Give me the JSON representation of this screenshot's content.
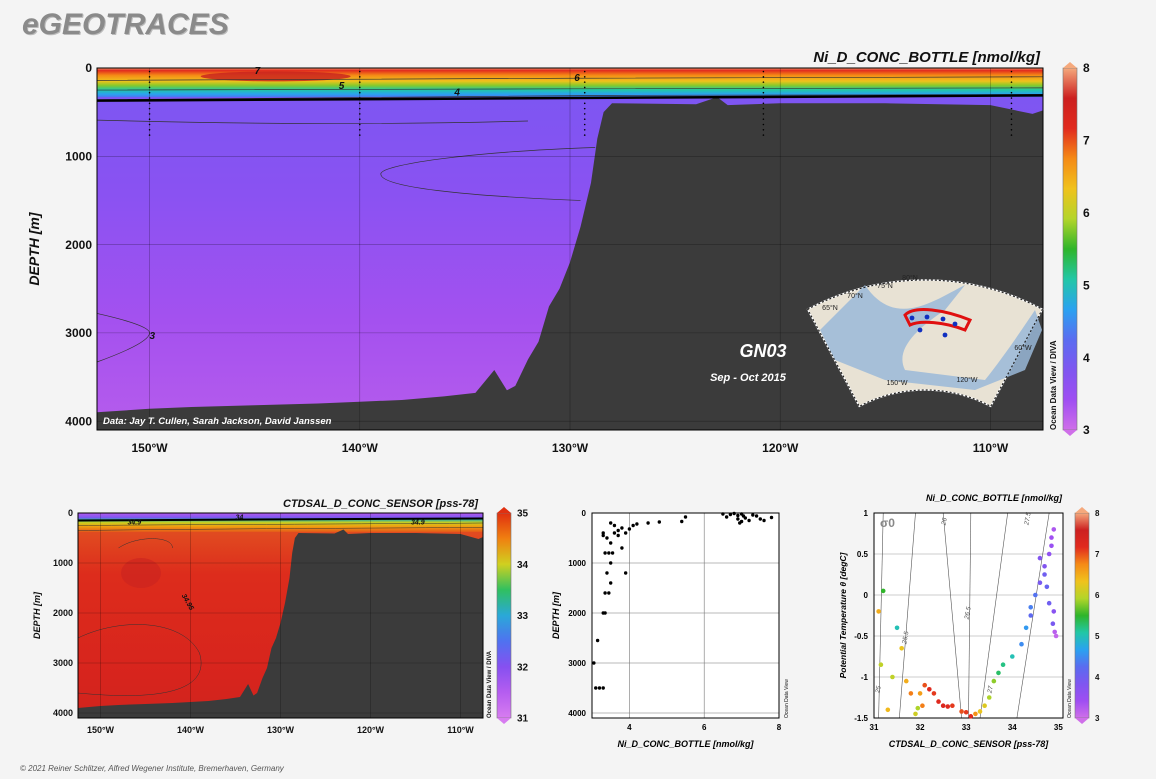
{
  "brand": "eGEOTRACES",
  "footer": "© 2021 Reiner Schlitzer, Alfred Wegener Institute, Bremerhaven, Germany",
  "colors": {
    "land": "#3b3b3b",
    "background": "#f4f4f4",
    "scale_ni": [
      "#cf6fe9",
      "#9f4ef2",
      "#7f56f0",
      "#5a6cf0",
      "#2aa2f0",
      "#22c7a6",
      "#2fb52a",
      "#b3d52a",
      "#f0c21c",
      "#f58a16",
      "#e12a1e",
      "#cc2020",
      "#f5a97d"
    ],
    "scale_sal": [
      "#d77cf0",
      "#b55df0",
      "#8650f0",
      "#4f72f0",
      "#2aa8d8",
      "#30c060",
      "#d0d020",
      "#f08010",
      "#e03010"
    ]
  },
  "chart_data": [
    {
      "id": "main-section",
      "type": "heatmap",
      "title": "Ni_D_CONC_BOTTLE [nmol/kg]",
      "ylabel": "DEPTH [m]",
      "xlabel": "",
      "x_ticks": [
        "150°W",
        "140°W",
        "130°W",
        "120°W",
        "110°W"
      ],
      "x_tick_values": [
        -150,
        -140,
        -130,
        -120,
        -110
      ],
      "y_ticks": [
        "0",
        "1000",
        "2000",
        "3000",
        "4000"
      ],
      "y_tick_values": [
        0,
        1000,
        2000,
        3000,
        4000
      ],
      "xlim": [
        -152.5,
        -107.5
      ],
      "ylim": [
        0,
        4100
      ],
      "colorbar": {
        "ticks": [
          "8",
          "7",
          "6",
          "5",
          "4",
          "3"
        ],
        "range": [
          3,
          8
        ]
      },
      "contour_labels": [
        "7",
        "6",
        "5",
        "4",
        "3"
      ],
      "annotations": {
        "section": "GN03",
        "period": "Sep - Oct 2015",
        "credit": "Data: Jay T. Cullen, Sarah Jackson, David Janssen"
      },
      "side_label": "Ocean Data View / DIVA",
      "inset_map": {
        "labels": [
          "80°N",
          "75°N",
          "70°N",
          "65°N",
          "150°W",
          "120°W",
          "60°W"
        ]
      }
    },
    {
      "id": "salinity-section",
      "type": "heatmap",
      "title": "CTDSAL_D_CONC_SENSOR [pss-78]",
      "ylabel": "DEPTH [m]",
      "x_ticks": [
        "150°W",
        "140°W",
        "130°W",
        "120°W",
        "110°W"
      ],
      "x_tick_values": [
        -150,
        -140,
        -130,
        -120,
        -110
      ],
      "y_ticks": [
        "0",
        "1000",
        "2000",
        "3000",
        "4000"
      ],
      "y_tick_values": [
        0,
        1000,
        2000,
        3000,
        4000
      ],
      "xlim": [
        -152.5,
        -107.5
      ],
      "ylim": [
        0,
        4100
      ],
      "colorbar": {
        "ticks": [
          "35",
          "34",
          "33",
          "32",
          "31"
        ],
        "range": [
          31,
          35
        ]
      },
      "contour_labels": [
        "34.9",
        "34",
        "34.9",
        "34.95"
      ],
      "side_label": "Ocean Data View / DIVA"
    },
    {
      "id": "profile-scatter",
      "type": "scatter",
      "title": "",
      "xlabel": "Ni_D_CONC_BOTTLE [nmol/kg]",
      "ylabel": "DEPTH [m]",
      "x_ticks": [
        "4",
        "6",
        "8"
      ],
      "x_tick_values": [
        4,
        6,
        8
      ],
      "y_ticks": [
        "0",
        "1000",
        "2000",
        "3000",
        "4000"
      ],
      "y_tick_values": [
        0,
        1000,
        2000,
        3000,
        4000
      ],
      "xlim": [
        3,
        8
      ],
      "ylim": [
        0,
        4100
      ],
      "side_label": "Ocean Data View",
      "points": [
        [
          3.05,
          3000
        ],
        [
          3.1,
          3500
        ],
        [
          3.2,
          3500
        ],
        [
          3.3,
          3500
        ],
        [
          3.15,
          2550
        ],
        [
          3.3,
          2000
        ],
        [
          3.35,
          2000
        ],
        [
          3.35,
          1600
        ],
        [
          3.45,
          1600
        ],
        [
          3.5,
          1400
        ],
        [
          3.4,
          1200
        ],
        [
          3.5,
          1000
        ],
        [
          3.35,
          800
        ],
        [
          3.45,
          800
        ],
        [
          3.55,
          800
        ],
        [
          3.5,
          600
        ],
        [
          3.4,
          500
        ],
        [
          3.6,
          400
        ],
        [
          3.7,
          350
        ],
        [
          3.8,
          300
        ],
        [
          4.0,
          320
        ],
        [
          4.1,
          250
        ],
        [
          4.2,
          220
        ],
        [
          4.5,
          200
        ],
        [
          4.8,
          180
        ],
        [
          5.4,
          170
        ],
        [
          3.9,
          1200
        ],
        [
          3.3,
          450
        ],
        [
          3.5,
          200
        ],
        [
          3.6,
          250
        ],
        [
          3.3,
          400
        ],
        [
          3.9,
          400
        ],
        [
          3.7,
          450
        ],
        [
          3.8,
          700
        ],
        [
          5.5,
          80
        ],
        [
          6.5,
          20
        ],
        [
          6.7,
          30
        ],
        [
          6.8,
          10
        ],
        [
          6.9,
          50
        ],
        [
          7.0,
          20
        ],
        [
          7.1,
          100
        ],
        [
          7.3,
          40
        ],
        [
          7.4,
          60
        ],
        [
          6.6,
          80
        ],
        [
          7.5,
          120
        ],
        [
          7.6,
          150
        ],
        [
          7.2,
          150
        ],
        [
          6.95,
          200
        ],
        [
          7.0,
          170
        ],
        [
          6.9,
          120
        ],
        [
          7.8,
          90
        ],
        [
          7.05,
          60
        ]
      ]
    },
    {
      "id": "ts-scatter",
      "type": "scatter",
      "title": "Ni_D_CONC_BOTTLE [nmol/kg]",
      "xlabel": "CTDSAL_D_CONC_SENSOR [pss-78]",
      "ylabel": "Potential Temperature θ [degC]",
      "x_ticks": [
        "31",
        "32",
        "33",
        "34",
        "35"
      ],
      "x_tick_values": [
        31,
        32,
        33,
        34,
        35
      ],
      "y_ticks": [
        "1",
        "0.5",
        "0",
        "-0.5",
        "-1",
        "-1.5"
      ],
      "y_tick_values": [
        1,
        0.5,
        0,
        -0.5,
        -1,
        -1.5
      ],
      "xlim": [
        31,
        35.1
      ],
      "ylim": [
        -1.5,
        1
      ],
      "sigma_label": "σ0",
      "isopycnal_labels": [
        "25",
        "25.5",
        "26",
        "26.5",
        "27",
        "27.5"
      ],
      "colorbar": {
        "ticks": [
          "8",
          "7",
          "6",
          "5",
          "4",
          "3"
        ],
        "range": [
          3,
          8
        ]
      },
      "side_label": "Ocean Data View",
      "points": [
        [
          31.1,
          -0.2,
          6.5
        ],
        [
          31.2,
          0.05,
          5.5
        ],
        [
          31.15,
          -0.85,
          6.0
        ],
        [
          31.3,
          -1.4,
          6.4
        ],
        [
          31.5,
          -0.4,
          5.0
        ],
        [
          31.6,
          -0.65,
          6.3
        ],
        [
          31.7,
          -1.05,
          6.5
        ],
        [
          31.8,
          -1.2,
          6.8
        ],
        [
          31.9,
          -1.45,
          6.1
        ],
        [
          31.95,
          -1.38,
          5.9
        ],
        [
          32.0,
          -1.2,
          6.6
        ],
        [
          32.1,
          -1.1,
          7.0
        ],
        [
          32.2,
          -1.15,
          7.2
        ],
        [
          32.3,
          -1.2,
          7.1
        ],
        [
          32.4,
          -1.3,
          7.2
        ],
        [
          32.5,
          -1.35,
          7.3
        ],
        [
          32.6,
          -1.36,
          7.2
        ],
        [
          32.7,
          -1.35,
          7.1
        ],
        [
          32.9,
          -1.42,
          7.0
        ],
        [
          33.0,
          -1.43,
          7.1
        ],
        [
          33.1,
          -1.48,
          7.2
        ],
        [
          33.2,
          -1.45,
          6.7
        ],
        [
          33.3,
          -1.42,
          6.3
        ],
        [
          33.4,
          -1.35,
          6.2
        ],
        [
          33.5,
          -1.25,
          5.9
        ],
        [
          33.6,
          -1.05,
          5.8
        ],
        [
          33.7,
          -0.95,
          5.3
        ],
        [
          33.8,
          -0.85,
          5.2
        ],
        [
          34.0,
          -0.75,
          5.0
        ],
        [
          34.2,
          -0.6,
          4.5
        ],
        [
          34.3,
          -0.4,
          4.6
        ],
        [
          34.4,
          -0.25,
          4.2
        ],
        [
          34.5,
          0.0,
          4.3
        ],
        [
          34.6,
          0.15,
          3.9
        ],
        [
          34.7,
          0.35,
          3.8
        ],
        [
          34.8,
          0.5,
          3.6
        ],
        [
          34.85,
          0.7,
          3.4
        ],
        [
          34.9,
          -0.2,
          3.7
        ],
        [
          34.88,
          -0.35,
          3.9
        ],
        [
          34.8,
          -0.1,
          4.0
        ],
        [
          34.75,
          0.1,
          4.1
        ],
        [
          34.7,
          0.25,
          4.0
        ],
        [
          34.92,
          -0.45,
          3.2
        ],
        [
          34.95,
          -0.5,
          3.1
        ],
        [
          34.9,
          0.8,
          3.3
        ],
        [
          34.85,
          0.6,
          3.5
        ],
        [
          34.6,
          0.45,
          3.8
        ],
        [
          34.4,
          -0.15,
          4.4
        ],
        [
          31.4,
          -1.0,
          6.0
        ],
        [
          32.05,
          -1.35,
          6.8
        ]
      ]
    }
  ]
}
